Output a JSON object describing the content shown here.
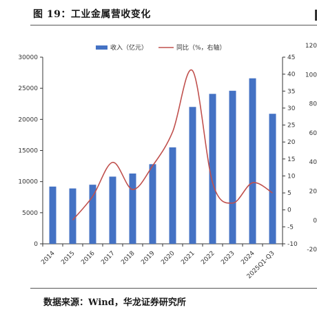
{
  "figure": {
    "title": "图 19：工业金属营收变化",
    "source": "数据来源：Wind，华龙证券研究所"
  },
  "chart_data": {
    "type": "bar+line",
    "categories": [
      "2014",
      "2015",
      "2016",
      "2017",
      "2018",
      "2019",
      "2020",
      "2021",
      "2022",
      "2023",
      "2024",
      "2025Q1-Q3"
    ],
    "series": [
      {
        "name": "收入（亿元）",
        "type": "bar",
        "axis": "left",
        "color": "#4472C4",
        "values": [
          9200,
          8900,
          9500,
          10800,
          11300,
          12800,
          15500,
          22000,
          24100,
          24600,
          26600,
          20900
        ]
      },
      {
        "name": "同比（%，右轴）",
        "type": "line",
        "axis": "right",
        "color": "#C0504D",
        "values": [
          null,
          -3,
          4,
          14,
          6,
          13,
          23,
          41,
          8,
          2,
          8,
          5
        ]
      }
    ],
    "y_left": {
      "min": 0,
      "max": 30000,
      "ticks": [
        0,
        5000,
        10000,
        15000,
        20000,
        25000,
        30000
      ]
    },
    "y_right": {
      "min": -10,
      "max": 45,
      "ticks": [
        -10,
        -5,
        0,
        5,
        10,
        15,
        20,
        25,
        30,
        35,
        40,
        45
      ]
    },
    "legend_position": "top-center",
    "grid": false
  },
  "neighbor_chart_axis": {
    "ticks": [
      "120",
      "100",
      "80",
      "60",
      "40",
      "20",
      "0",
      "-20"
    ]
  }
}
